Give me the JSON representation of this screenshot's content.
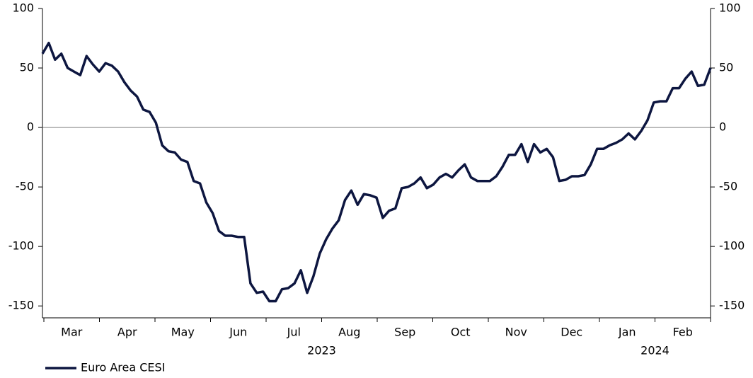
{
  "chart_data": {
    "type": "line",
    "months": [
      "Mar",
      "Apr",
      "May",
      "Jun",
      "Jul",
      "Aug",
      "Sep",
      "Oct",
      "Nov",
      "Dec",
      "Jan",
      "Feb"
    ],
    "years": [
      "2023",
      "2024"
    ],
    "series": [
      {
        "name": "Euro Area CESI",
        "color": "#0d1640",
        "values": [
          62,
          71,
          57,
          62,
          50,
          47,
          44,
          60,
          53,
          47,
          54,
          52,
          47,
          38,
          31,
          26,
          15,
          13,
          4,
          -15,
          -20,
          -21,
          -27,
          -29,
          -45,
          -47,
          -63,
          -72,
          -87,
          -91,
          -91,
          -92,
          -92,
          -131,
          -139,
          -138,
          -146,
          -146,
          -136,
          -135,
          -131,
          -120,
          -139,
          -125,
          -106,
          -94,
          -85,
          -78,
          -61,
          -53,
          -65,
          -56,
          -57,
          -59,
          -76,
          -70,
          -68,
          -51,
          -50,
          -47,
          -42,
          -51,
          -48,
          -42,
          -39,
          -42,
          -36,
          -31,
          -42,
          -45,
          -45,
          -45,
          -41,
          -33,
          -23,
          -23,
          -14,
          -29,
          -14,
          -21,
          -18,
          -25,
          -45,
          -44,
          -41,
          -41,
          -40,
          -31,
          -18,
          -18,
          -15,
          -13,
          -10,
          -5,
          -10,
          -3,
          6,
          21,
          22,
          22,
          33,
          33,
          41,
          47,
          35,
          36,
          50
        ]
      }
    ],
    "ylim": [
      -160,
      100
    ],
    "yticks": [
      100,
      50,
      0,
      -50,
      -100,
      -150
    ],
    "zero_line": true
  }
}
